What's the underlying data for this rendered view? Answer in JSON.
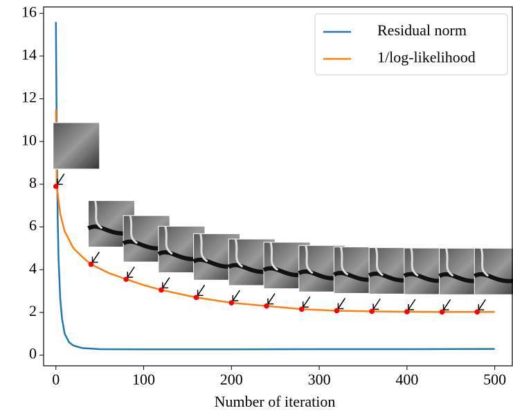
{
  "chart_data": {
    "type": "line",
    "x_label": "Number of iteration",
    "xlim": [
      -14,
      520
    ],
    "xticks": [
      0,
      100,
      200,
      300,
      400,
      500
    ],
    "ylim": [
      -0.5,
      16.3
    ],
    "yticks": [
      0,
      2,
      4,
      6,
      8,
      10,
      12,
      14,
      16
    ],
    "legend": "upper right",
    "series": [
      {
        "name": "Residual norm",
        "color": "#1f77b4",
        "x": [
          0,
          1,
          2,
          3,
          5,
          7,
          10,
          15,
          20,
          30,
          50,
          100,
          200,
          300,
          400,
          500
        ],
        "values": [
          15.6,
          10,
          6.5,
          4.5,
          2.6,
          1.7,
          1.0,
          0.6,
          0.45,
          0.33,
          0.28,
          0.27,
          0.27,
          0.28,
          0.28,
          0.29
        ]
      },
      {
        "name": "1/log-likelihood",
        "color": "#ff7f0e",
        "x": [
          0,
          0.5,
          1,
          5,
          10,
          20,
          30,
          40,
          60,
          80,
          100,
          120,
          160,
          200,
          240,
          280,
          320,
          360,
          400,
          440,
          480,
          500
        ],
        "values": [
          11.5,
          9.5,
          7.9,
          6.6,
          5.8,
          5.0,
          4.6,
          4.25,
          3.85,
          3.55,
          3.28,
          3.05,
          2.7,
          2.45,
          2.3,
          2.15,
          2.08,
          2.05,
          2.03,
          2.02,
          2.02,
          2.02
        ]
      }
    ],
    "points": {
      "color": "#ff0000",
      "x": [
        0,
        40,
        80,
        120,
        160,
        200,
        240,
        280,
        320,
        360,
        400,
        440,
        480
      ],
      "values": [
        7.9,
        4.25,
        3.55,
        3.05,
        2.7,
        2.45,
        2.3,
        2.15,
        2.08,
        2.05,
        2.03,
        2.02,
        2.02
      ]
    }
  }
}
